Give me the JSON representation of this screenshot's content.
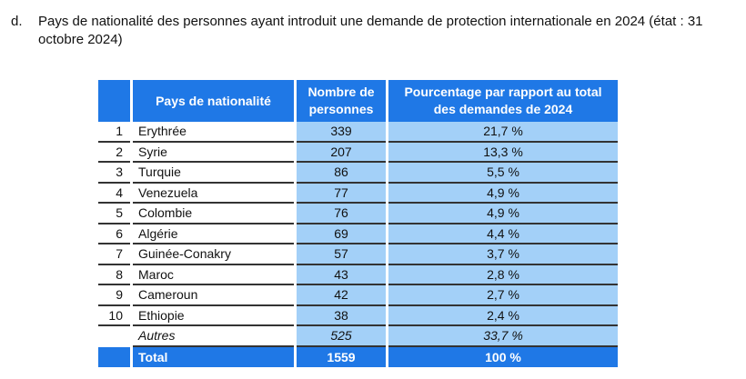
{
  "heading": {
    "label": "d.",
    "text": "Pays de nationalité des personnes ayant introduit une demande de protection internationale en 2024 (état : 31 octobre 2024)"
  },
  "table": {
    "headers": [
      "",
      "Pays de nationalité",
      "Nombre de personnes",
      "Pourcentage par rapport au total des demandes de 2024"
    ],
    "rows": [
      {
        "rank": "1",
        "country": "Erythrée",
        "count": "339",
        "pct": "21,7 %"
      },
      {
        "rank": "2",
        "country": "Syrie",
        "count": "207",
        "pct": "13,3 %"
      },
      {
        "rank": "3",
        "country": "Turquie",
        "count": "86",
        "pct": "5,5 %"
      },
      {
        "rank": "4",
        "country": "Venezuela",
        "count": "77",
        "pct": "4,9 %"
      },
      {
        "rank": "5",
        "country": "Colombie",
        "count": "76",
        "pct": "4,9 %"
      },
      {
        "rank": "6",
        "country": "Algérie",
        "count": "69",
        "pct": "4,4 %"
      },
      {
        "rank": "7",
        "country": "Guinée-Conakry",
        "count": "57",
        "pct": "3,7 %"
      },
      {
        "rank": "8",
        "country": "Maroc",
        "count": "43",
        "pct": "2,8 %"
      },
      {
        "rank": "9",
        "country": "Cameroun",
        "count": "42",
        "pct": "2,7 %"
      },
      {
        "rank": "10",
        "country": "Ethiopie",
        "count": "38",
        "pct": "2,4 %"
      }
    ],
    "other": {
      "rank": "",
      "country": "Autres",
      "count": "525",
      "pct": "33,7 %"
    },
    "total": {
      "rank": "",
      "country": "Total",
      "count": "1559",
      "pct": "100 %"
    }
  },
  "colors": {
    "header": "#1f78e6",
    "cell": "#a3d0f8"
  }
}
